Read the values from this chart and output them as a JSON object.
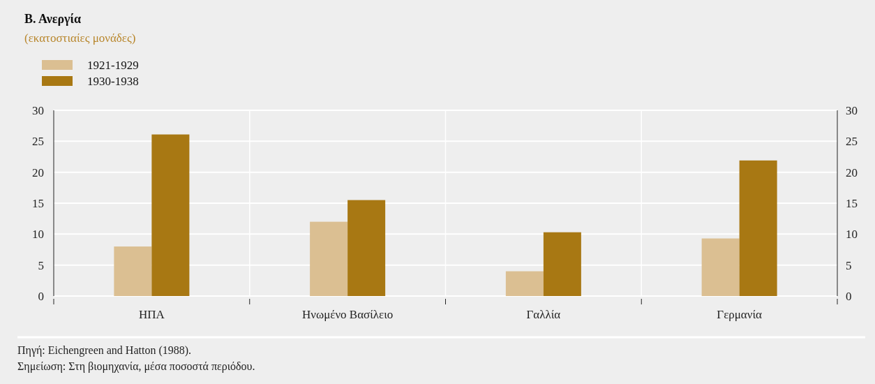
{
  "chart_data": {
    "type": "bar",
    "title": "Β. Ανεργία",
    "subtitle": "(εκατοστιαίες μονάδες)",
    "categories": [
      "ΗΠΑ",
      "Ηνωμένο Βασίλειο",
      "Γαλλία",
      "Γερμανία"
    ],
    "series": [
      {
        "name": "1921-1929",
        "color": "#dbbf92",
        "values": [
          8.0,
          12.0,
          4.0,
          9.3
        ]
      },
      {
        "name": "1930-1938",
        "color": "#a87813",
        "values": [
          26.1,
          15.5,
          10.3,
          21.9
        ]
      }
    ],
    "ylim": [
      0,
      30
    ],
    "yticks": [
      0,
      5,
      10,
      15,
      20,
      25,
      30
    ],
    "y2lim": [
      0,
      30
    ],
    "y2ticks": [
      0,
      5,
      10,
      15,
      20,
      25,
      30
    ],
    "grid": true,
    "legend": "top left",
    "annotations": [
      "Πηγή: Eichengreen and Hatton (1988).",
      "Σημείωση: Στη βιομηχανία, μέσα ποσοστά περιόδου."
    ]
  }
}
